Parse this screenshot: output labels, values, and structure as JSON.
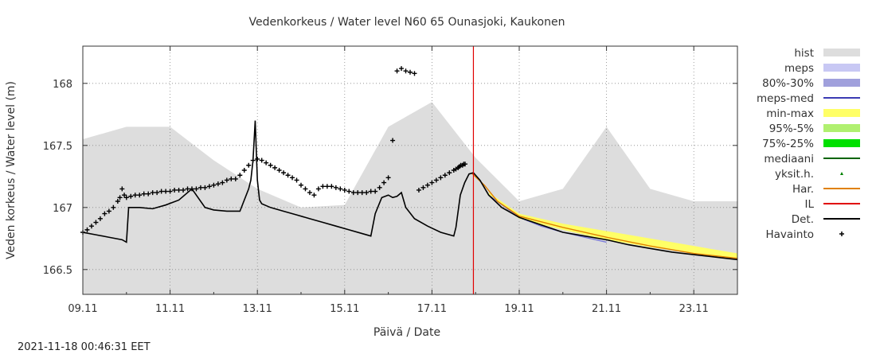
{
  "chart_data": {
    "type": "line",
    "title": "Vedenkorkeus / Water level   N60 65 Ounasjoki, Kaukonen",
    "xlabel": "Päivä / Date",
    "ylabel": "Veden korkeus / Water level (m)",
    "xlim": [
      0,
      15
    ],
    "ylim": [
      166.3,
      168.3
    ],
    "forecast_start_day": 8.95,
    "x_ticks": [
      {
        "day": 0,
        "label": "09.11"
      },
      {
        "day": 2,
        "label": "11.11"
      },
      {
        "day": 4,
        "label": "13.11"
      },
      {
        "day": 6,
        "label": "15.11"
      },
      {
        "day": 8,
        "label": "17.11"
      },
      {
        "day": 10,
        "label": "19.11"
      },
      {
        "day": 12,
        "label": "21.11"
      },
      {
        "day": 14,
        "label": "23.11"
      }
    ],
    "y_ticks": [
      {
        "value": 166.5,
        "label": "166.5"
      },
      {
        "value": 167,
        "label": "167"
      },
      {
        "value": 167.5,
        "label": "167.5"
      },
      {
        "value": 168,
        "label": "168"
      }
    ],
    "grid": true,
    "legend": [
      {
        "label": "hist",
        "style": "swatch",
        "color": "#dddddd"
      },
      {
        "label": "meps",
        "style": "swatch",
        "color": "#c8c8f4"
      },
      {
        "label": "80%-30%",
        "style": "swatch",
        "color": "#a0a0dc"
      },
      {
        "label": "meps-med",
        "style": "line",
        "color": "#3b3bb3"
      },
      {
        "label": "min-max",
        "style": "swatch",
        "color": "#ffff66"
      },
      {
        "label": "95%-5%",
        "style": "swatch",
        "color": "#b0f070"
      },
      {
        "label": "75%-25%",
        "style": "swatch",
        "color": "#00e000"
      },
      {
        "label": "mediaani",
        "style": "line",
        "color": "#006400"
      },
      {
        "label": "yksit.h.",
        "style": "dot",
        "color": "#008000"
      },
      {
        "label": "Har.",
        "style": "line",
        "color": "#e08000"
      },
      {
        "label": "IL",
        "style": "line",
        "color": "#e00000"
      },
      {
        "label": "Det.",
        "style": "line",
        "color": "#000000"
      },
      {
        "label": "Havainto",
        "style": "plus",
        "color": "#000000"
      }
    ],
    "series": [
      {
        "name": "hist",
        "kind": "area",
        "color": "#dddddd",
        "x": [
          0,
          1,
          2,
          3,
          4,
          5,
          6,
          7,
          8,
          9,
          10,
          11,
          12,
          13,
          14,
          15
        ],
        "y": [
          167.55,
          167.65,
          167.65,
          167.38,
          167.15,
          167.0,
          167.02,
          167.65,
          167.85,
          167.4,
          167.05,
          167.15,
          167.65,
          167.15,
          167.05,
          167.05
        ]
      },
      {
        "name": "min-max",
        "kind": "band",
        "color": "#ffff66",
        "x": [
          9.3,
          10,
          11,
          12,
          13,
          14,
          15
        ],
        "y_low": [
          167.1,
          166.91,
          166.82,
          166.74,
          166.68,
          166.63,
          166.59
        ],
        "y_high": [
          167.12,
          166.95,
          166.87,
          166.81,
          166.75,
          166.69,
          166.63
        ]
      },
      {
        "name": "meps",
        "kind": "line",
        "color": "#7a7ad8",
        "x": [
          9.3,
          10,
          10.5,
          11,
          11.5,
          12
        ],
        "y": [
          167.1,
          166.92,
          166.85,
          166.8,
          166.76,
          166.72
        ]
      },
      {
        "name": "Har.",
        "kind": "line",
        "color": "#e08000",
        "x": [
          8.9,
          9.2,
          9.5,
          10,
          11,
          12,
          13,
          14,
          15
        ],
        "y": [
          167.28,
          167.18,
          167.05,
          166.93,
          166.84,
          166.76,
          166.69,
          166.63,
          166.59
        ]
      },
      {
        "name": "Det.",
        "kind": "line",
        "color": "#000000",
        "x": [
          0,
          0.3,
          0.6,
          0.9,
          1.0,
          1.05,
          1.1,
          1.3,
          1.6,
          1.9,
          2.2,
          2.5,
          2.8,
          3.0,
          3.3,
          3.6,
          3.8,
          3.85,
          3.9,
          3.95,
          4.0,
          4.05,
          4.1,
          4.3,
          4.6,
          4.9,
          5.2,
          5.5,
          5.8,
          6.1,
          6.4,
          6.6,
          6.7,
          6.85,
          7.0,
          7.1,
          7.2,
          7.3,
          7.4,
          7.6,
          7.9,
          8.2,
          8.5,
          8.55,
          8.65,
          8.75,
          8.85,
          8.95,
          9.1,
          9.3,
          9.6,
          10.0,
          10.5,
          11.0,
          11.5,
          12.0,
          12.5,
          13.0,
          13.5,
          14.0,
          14.5,
          15.0
        ],
        "y": [
          166.8,
          166.78,
          166.76,
          166.74,
          166.72,
          167.0,
          167.0,
          167.0,
          166.99,
          167.02,
          167.06,
          167.15,
          167.0,
          166.98,
          166.97,
          166.97,
          167.15,
          167.22,
          167.38,
          167.7,
          167.22,
          167.06,
          167.03,
          167.0,
          166.97,
          166.94,
          166.91,
          166.88,
          166.85,
          166.82,
          166.79,
          166.77,
          166.95,
          167.08,
          167.1,
          167.08,
          167.09,
          167.12,
          167.0,
          166.91,
          166.85,
          166.8,
          166.77,
          166.84,
          167.1,
          167.2,
          167.27,
          167.28,
          167.22,
          167.1,
          167.0,
          166.92,
          166.86,
          166.8,
          166.77,
          166.74,
          166.7,
          166.67,
          166.64,
          166.62,
          166.6,
          166.58
        ]
      },
      {
        "name": "Havainto",
        "kind": "plus",
        "color": "#000000",
        "x": [
          0.0,
          0.1,
          0.2,
          0.3,
          0.4,
          0.5,
          0.6,
          0.7,
          0.8,
          0.85,
          0.9,
          0.95,
          1.0,
          1.1,
          1.2,
          1.3,
          1.4,
          1.5,
          1.6,
          1.7,
          1.8,
          1.9,
          2.0,
          2.1,
          2.2,
          2.3,
          2.4,
          2.5,
          2.6,
          2.7,
          2.8,
          2.9,
          3.0,
          3.1,
          3.2,
          3.3,
          3.4,
          3.5,
          3.6,
          3.7,
          3.8,
          3.9,
          4.0,
          4.1,
          4.2,
          4.3,
          4.4,
          4.5,
          4.6,
          4.7,
          4.8,
          4.9,
          5.0,
          5.1,
          5.2,
          5.3,
          5.4,
          5.5,
          5.6,
          5.7,
          5.8,
          5.9,
          6.0,
          6.1,
          6.2,
          6.3,
          6.4,
          6.5,
          6.6,
          6.7,
          6.8,
          6.9,
          7.0,
          7.1,
          7.2,
          7.3,
          7.4,
          7.5,
          7.6,
          7.7,
          7.8,
          7.9,
          8.0,
          8.1,
          8.2,
          8.3,
          8.4,
          8.5,
          8.55,
          8.6,
          8.63,
          8.66,
          8.7,
          8.73,
          8.76
        ],
        "y": [
          166.8,
          166.82,
          166.85,
          166.88,
          166.91,
          166.95,
          166.97,
          167.0,
          167.05,
          167.08,
          167.15,
          167.1,
          167.08,
          167.09,
          167.1,
          167.1,
          167.11,
          167.11,
          167.12,
          167.12,
          167.13,
          167.13,
          167.13,
          167.14,
          167.14,
          167.14,
          167.15,
          167.15,
          167.15,
          167.16,
          167.16,
          167.17,
          167.18,
          167.19,
          167.2,
          167.22,
          167.23,
          167.23,
          167.26,
          167.3,
          167.34,
          167.38,
          167.39,
          167.38,
          167.36,
          167.34,
          167.32,
          167.3,
          167.28,
          167.26,
          167.24,
          167.22,
          167.18,
          167.15,
          167.12,
          167.1,
          167.15,
          167.17,
          167.17,
          167.17,
          167.16,
          167.15,
          167.14,
          167.13,
          167.12,
          167.12,
          167.12,
          167.12,
          167.13,
          167.13,
          167.16,
          167.2,
          167.24,
          167.54,
          168.1,
          168.12,
          168.1,
          168.09,
          168.08,
          167.14,
          167.16,
          167.18,
          167.2,
          167.22,
          167.24,
          167.26,
          167.28,
          167.3,
          167.31,
          167.32,
          167.33,
          167.34,
          167.34,
          167.35,
          167.35
        ]
      }
    ],
    "timestamp": "2021-11-18 00:46:31 EET"
  }
}
